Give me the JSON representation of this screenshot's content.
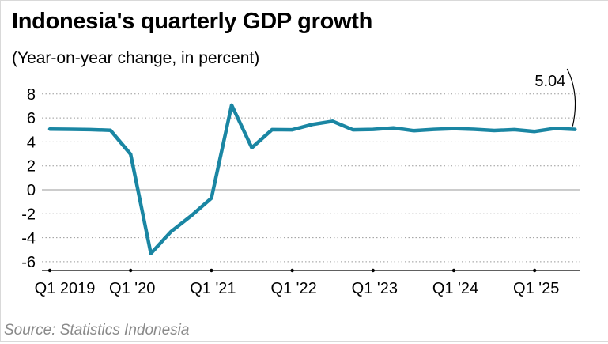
{
  "title": "Indonesia's quarterly GDP growth",
  "subtitle": "(Year-on-year change, in percent)",
  "source": "Source: Statistics Indonesia",
  "colors": {
    "line": "#1a86a3",
    "grid": "#9a9a9a",
    "zero": "#9a9a9a",
    "axis": "#000000"
  },
  "chart_data": {
    "type": "line",
    "title": "Indonesia's quarterly GDP growth",
    "subtitle": "(Year-on-year change, in percent)",
    "xlabel": "",
    "ylabel": "",
    "ylim": [
      -7,
      8
    ],
    "yticks": [
      8,
      6,
      4,
      2,
      0,
      -2,
      -4,
      -6
    ],
    "ytick_labels": [
      "8",
      "6",
      "4",
      "2",
      "0",
      "-2",
      "-4",
      "-6"
    ],
    "x_tick_positions": [
      0,
      4,
      8,
      12,
      16,
      20,
      24
    ],
    "x_tick_labels": [
      "Q1 2019",
      "Q1 '20",
      "Q1 '21",
      "Q1 '22",
      "Q1 '23",
      "Q1 '24",
      "Q1 '25"
    ],
    "grid": "horizontal dotted",
    "series": [
      {
        "x": [
          "Q1 2019",
          "Q2 2019",
          "Q3 2019",
          "Q4 2019",
          "Q1 2020",
          "Q2 2020",
          "Q3 2020",
          "Q4 2020",
          "Q1 2021",
          "Q2 2021",
          "Q3 2021",
          "Q4 2021",
          "Q1 2022",
          "Q2 2022",
          "Q3 2022",
          "Q4 2022",
          "Q1 2023",
          "Q2 2023",
          "Q3 2023",
          "Q4 2023",
          "Q1 2024",
          "Q2 2024",
          "Q3 2024",
          "Q4 2024",
          "Q1 2025",
          "Q2 2025",
          "Q3 2025"
        ],
        "values": [
          5.07,
          5.05,
          5.02,
          4.97,
          2.97,
          -5.32,
          -3.49,
          -2.17,
          -0.7,
          7.07,
          3.51,
          5.02,
          5.01,
          5.46,
          5.72,
          5.01,
          5.04,
          5.17,
          4.94,
          5.04,
          5.11,
          5.05,
          4.95,
          5.02,
          4.87,
          5.12,
          5.04
        ]
      }
    ],
    "annotations": [
      {
        "text": "5.04",
        "x": "Q3 2025",
        "y": 5.04
      }
    ]
  }
}
